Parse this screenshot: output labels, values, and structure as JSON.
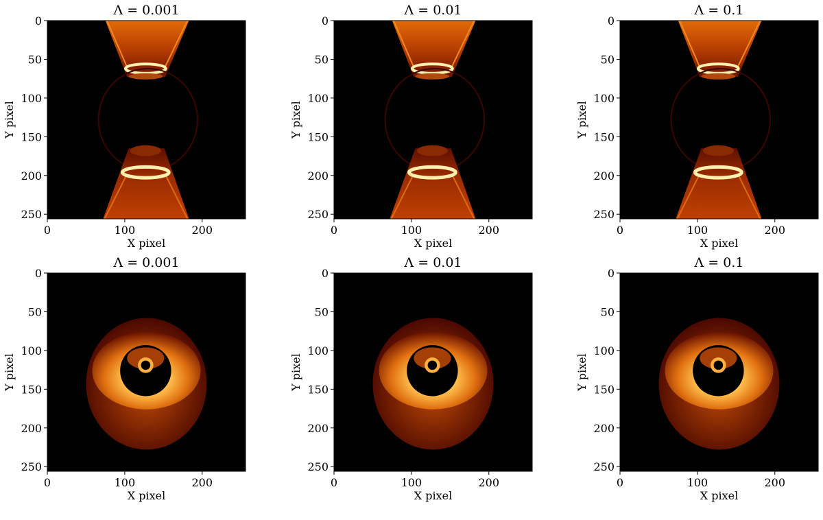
{
  "figure": {
    "panels": [
      {
        "id": "p1",
        "title": "Λ = 0.001",
        "xlabel": "X pixel",
        "ylabel": "Y pixel",
        "kind": "jet"
      },
      {
        "id": "p2",
        "title": "Λ = 0.01",
        "xlabel": "X pixel",
        "ylabel": "Y pixel",
        "kind": "jet"
      },
      {
        "id": "p3",
        "title": "Λ = 0.1",
        "xlabel": "X pixel",
        "ylabel": "Y pixel",
        "kind": "jet"
      },
      {
        "id": "p4",
        "title": "Λ = 0.001",
        "xlabel": "X pixel",
        "ylabel": "Y pixel",
        "kind": "disk"
      },
      {
        "id": "p5",
        "title": "Λ = 0.01",
        "xlabel": "X pixel",
        "ylabel": "Y pixel",
        "kind": "disk"
      },
      {
        "id": "p6",
        "title": "Λ = 0.1",
        "xlabel": "X pixel",
        "ylabel": "Y pixel",
        "kind": "disk"
      }
    ]
  },
  "chart_data": [
    {
      "type": "heatmap",
      "title": "Λ = 0.001",
      "xlabel": "X pixel",
      "ylabel": "Y pixel",
      "xlim": [
        0,
        256
      ],
      "ylim": [
        256,
        0
      ],
      "xticks": [
        0,
        100,
        200
      ],
      "yticks": [
        0,
        50,
        100,
        150,
        200,
        250
      ],
      "colormap": "afmhot",
      "image_size": [
        256,
        256
      ]
    },
    {
      "type": "heatmap",
      "title": "Λ = 0.01",
      "xlabel": "X pixel",
      "ylabel": "Y pixel",
      "xlim": [
        0,
        256
      ],
      "ylim": [
        256,
        0
      ],
      "xticks": [
        0,
        100,
        200
      ],
      "yticks": [
        0,
        50,
        100,
        150,
        200,
        250
      ],
      "colormap": "afmhot",
      "image_size": [
        256,
        256
      ]
    },
    {
      "type": "heatmap",
      "title": "Λ = 0.1",
      "xlabel": "X pixel",
      "ylabel": "Y pixel",
      "xlim": [
        0,
        256
      ],
      "ylim": [
        256,
        0
      ],
      "xticks": [
        0,
        100,
        200
      ],
      "yticks": [
        0,
        50,
        100,
        150,
        200,
        250
      ],
      "colormap": "afmhot",
      "image_size": [
        256,
        256
      ]
    },
    {
      "type": "heatmap",
      "title": "Λ = 0.001",
      "xlabel": "X pixel",
      "ylabel": "Y pixel",
      "xlim": [
        0,
        256
      ],
      "ylim": [
        256,
        0
      ],
      "xticks": [
        0,
        100,
        200
      ],
      "yticks": [
        0,
        50,
        100,
        150,
        200,
        250
      ],
      "colormap": "afmhot",
      "image_size": [
        256,
        256
      ]
    },
    {
      "type": "heatmap",
      "title": "Λ = 0.01",
      "xlabel": "X pixel",
      "ylabel": "Y pixel",
      "xlim": [
        0,
        256
      ],
      "ylim": [
        256,
        0
      ],
      "xticks": [
        0,
        100,
        200
      ],
      "yticks": [
        0,
        50,
        100,
        150,
        200,
        250
      ],
      "colormap": "afmhot",
      "image_size": [
        256,
        256
      ]
    },
    {
      "type": "heatmap",
      "title": "Λ = 0.1",
      "xlabel": "X pixel",
      "ylabel": "Y pixel",
      "xlim": [
        0,
        256
      ],
      "ylim": [
        256,
        0
      ],
      "xticks": [
        0,
        100,
        200
      ],
      "yticks": [
        0,
        50,
        100,
        150,
        200,
        250
      ],
      "colormap": "afmhot",
      "image_size": [
        256,
        256
      ]
    }
  ]
}
